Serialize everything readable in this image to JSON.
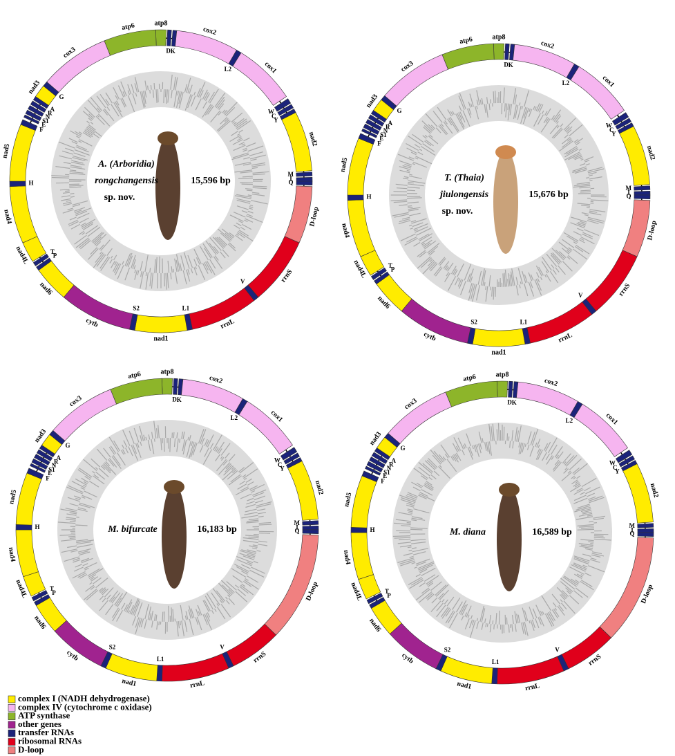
{
  "genes": [
    {
      "label": "atp8",
      "color": "#8db52a"
    },
    {
      "label": "D",
      "color": "#1b237a"
    },
    {
      "label": "K",
      "color": "#1b237a"
    },
    {
      "label": "cox2",
      "color": "#f6b5f0"
    },
    {
      "label": "L2",
      "color": "#1b237a"
    },
    {
      "label": "cox1",
      "color": "#f6b5f0"
    },
    {
      "label": "W",
      "color": "#1b237a"
    },
    {
      "label": "C",
      "color": "#1b237a"
    },
    {
      "label": "Y",
      "color": "#1b237a"
    },
    {
      "label": "nad2",
      "color": "#ffec00"
    },
    {
      "label": "M",
      "color": "#1b237a"
    },
    {
      "label": "I",
      "color": "#1b237a"
    },
    {
      "label": "Q",
      "color": "#1b237a"
    },
    {
      "label": "D-loop",
      "color": "#f08080"
    },
    {
      "label": "rrnS",
      "color": "#e0001b"
    },
    {
      "label": "V",
      "color": "#1b237a"
    },
    {
      "label": "rrnL",
      "color": "#e0001b"
    },
    {
      "label": "L1",
      "color": "#1b237a"
    },
    {
      "label": "nad1",
      "color": "#ffec00"
    },
    {
      "label": "S2",
      "color": "#1b237a"
    },
    {
      "label": "cytb",
      "color": "#a0238f"
    },
    {
      "label": "nad6",
      "color": "#ffec00"
    },
    {
      "label": "P",
      "color": "#1b237a"
    },
    {
      "label": "T",
      "color": "#1b237a"
    },
    {
      "label": "nad4L",
      "color": "#ffec00"
    },
    {
      "label": "nad4",
      "color": "#ffec00"
    },
    {
      "label": "H",
      "color": "#1b237a"
    },
    {
      "label": "nad5",
      "color": "#ffec00"
    },
    {
      "label": "F",
      "color": "#1b237a"
    },
    {
      "label": "E",
      "color": "#1b237a"
    },
    {
      "label": "S1",
      "color": "#1b237a"
    },
    {
      "label": "N",
      "color": "#1b237a"
    },
    {
      "label": "R",
      "color": "#1b237a"
    },
    {
      "label": "A",
      "color": "#1b237a"
    },
    {
      "label": "nad3",
      "color": "#ffec00"
    },
    {
      "label": "G",
      "color": "#1b237a"
    },
    {
      "label": "cox3",
      "color": "#f6b5f0"
    },
    {
      "label": "atp6",
      "color": "#8db52a"
    }
  ],
  "maps": [
    {
      "name": [
        "A. (Arboridia)",
        "rongchangensis"
      ],
      "note": "sp. nov.",
      "size": "15,596 bp"
    },
    {
      "name": [
        "T. (Thaia)",
        "jiulongensis"
      ],
      "note": "sp. nov.",
      "size": "15,676 bp"
    },
    {
      "name": [
        "M. bifurcate"
      ],
      "size": "16,183 bp"
    },
    {
      "name": [
        "M. diana"
      ],
      "size": "16,589 bp"
    }
  ],
  "legend": [
    {
      "label": "complex I (NADH dehydrogenase)",
      "color": "#ffec00"
    },
    {
      "label": "complex IV (cytochrome c oxidase)",
      "color": "#f6b5f0"
    },
    {
      "label": "ATP synthase",
      "color": "#8db52a"
    },
    {
      "label": "other genes",
      "color": "#a0238f"
    },
    {
      "label": "transfer RNAs",
      "color": "#1b237a"
    },
    {
      "label": "ribosomal RNAs",
      "color": "#e0001b"
    },
    {
      "label": "D-loop",
      "color": "#f08080"
    }
  ]
}
